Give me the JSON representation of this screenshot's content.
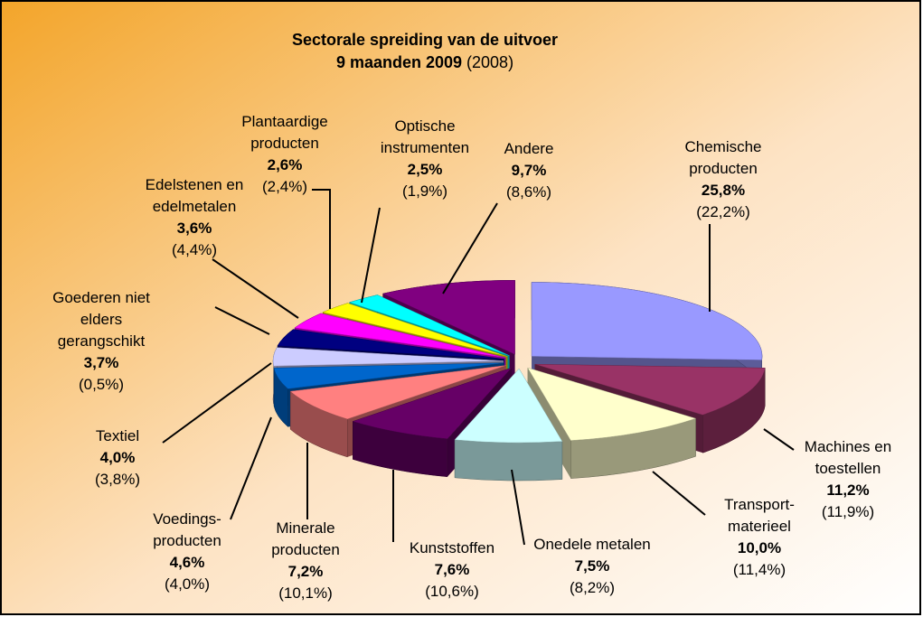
{
  "chart_data": {
    "type": "pie3d",
    "title": "Sectorale spreiding van de uitvoer",
    "subtitle_bold": "9 maanden 2009",
    "subtitle_rest": "(2008)",
    "categories": [
      [
        "Chemische",
        "producten"
      ],
      [
        "Machines en",
        "toestellen"
      ],
      [
        "Transport-",
        "materieel"
      ],
      [
        "Onedele metalen"
      ],
      [
        "Kunststoffen"
      ],
      [
        "Minerale",
        "producten"
      ],
      [
        "Voedings-",
        "producten"
      ],
      [
        "Textiel"
      ],
      [
        "Goederen niet",
        "elders",
        "gerangschikt"
      ],
      [
        "Edelstenen en",
        "edelmetalen"
      ],
      [
        "Plantaardige",
        "producten"
      ],
      [
        "Optische",
        "instrumenten"
      ],
      [
        "Andere"
      ]
    ],
    "values": [
      25.8,
      11.2,
      10.0,
      7.5,
      7.6,
      7.2,
      4.6,
      4.0,
      3.7,
      3.6,
      2.6,
      2.5,
      9.7
    ],
    "value_labels": [
      "25,8%",
      "11,2%",
      "10,0%",
      "7,5%",
      "7,6%",
      "7,2%",
      "4,6%",
      "4,0%",
      "3,7%",
      "3,6%",
      "2,6%",
      "2,5%",
      "9,7%"
    ],
    "labels_2008": [
      "(22,2%)",
      "(11,9%)",
      "(11,4%)",
      "(8,2%)",
      "(10,6%)",
      "(10,1%)",
      "(4,0%)",
      "(3,8%)",
      "(0,5%)",
      "(4,4%)",
      "(2,4%)",
      "(1,9%)",
      "(8,6%)"
    ],
    "colors": [
      "#9999ff",
      "#993366",
      "#ffffcc",
      "#ccffff",
      "#660066",
      "#ff8080",
      "#0066cc",
      "#ccccff",
      "#000080",
      "#ff00ff",
      "#ffff00",
      "#00ffff",
      "#800080"
    ]
  }
}
